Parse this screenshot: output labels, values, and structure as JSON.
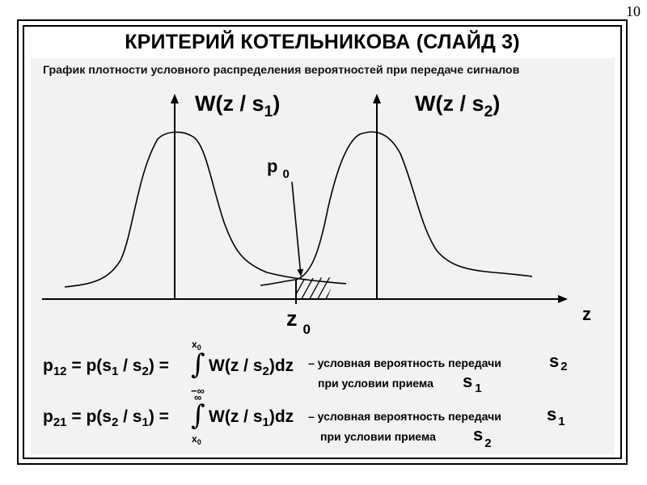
{
  "page_number": "10",
  "title": "КРИТЕРИЙ КОТЕЛЬНИКОВА (СЛАЙД 3)",
  "subtitle": "График плотности условного распределения вероятностей при передаче сигналов",
  "graph": {
    "curve1": {
      "label_main": "W(z / s",
      "label_sub": "1",
      "label_end": ")"
    },
    "curve2": {
      "label_main": "W(z / s",
      "label_sub": "2",
      "label_end": ")"
    },
    "p0": {
      "main": "p",
      "sub": "0"
    },
    "z0": {
      "main": "z",
      "sub": "0"
    },
    "axis_x_label": "z"
  },
  "formula1": {
    "lhs": {
      "p": "p",
      "p_sub": "12",
      "eq": " = p(s",
      "s_a": "1",
      "mid": " / s",
      "s_b": "2",
      "close": ") ="
    },
    "upper_limit": {
      "main": "x",
      "sub": "0"
    },
    "lower_limit": "−∞",
    "integrand": {
      "a": "W(z / s",
      "sub": "2",
      "b": ")dz"
    },
    "description": "– условная вероятность передачи",
    "signal_a": {
      "main": "s",
      "sub": "2"
    },
    "condition": "при условии приема",
    "signal_b": {
      "main": "s",
      "sub": "1"
    }
  },
  "formula2": {
    "lhs": {
      "p": "p",
      "p_sub": "21",
      "eq": " = p(s",
      "s_a": "2",
      "mid": " / s",
      "s_b": "1",
      "close": ") ="
    },
    "upper_limit": "∞",
    "lower_limit": {
      "main": "x",
      "sub": "0"
    },
    "integrand": {
      "a": "W(z / s",
      "sub": "1",
      "b": ")dz"
    },
    "description": "– условная вероятность передачи",
    "signal_a": {
      "main": "s",
      "sub": "1"
    },
    "condition": "при условии приема",
    "signal_b": {
      "main": "s",
      "sub": "2"
    }
  }
}
